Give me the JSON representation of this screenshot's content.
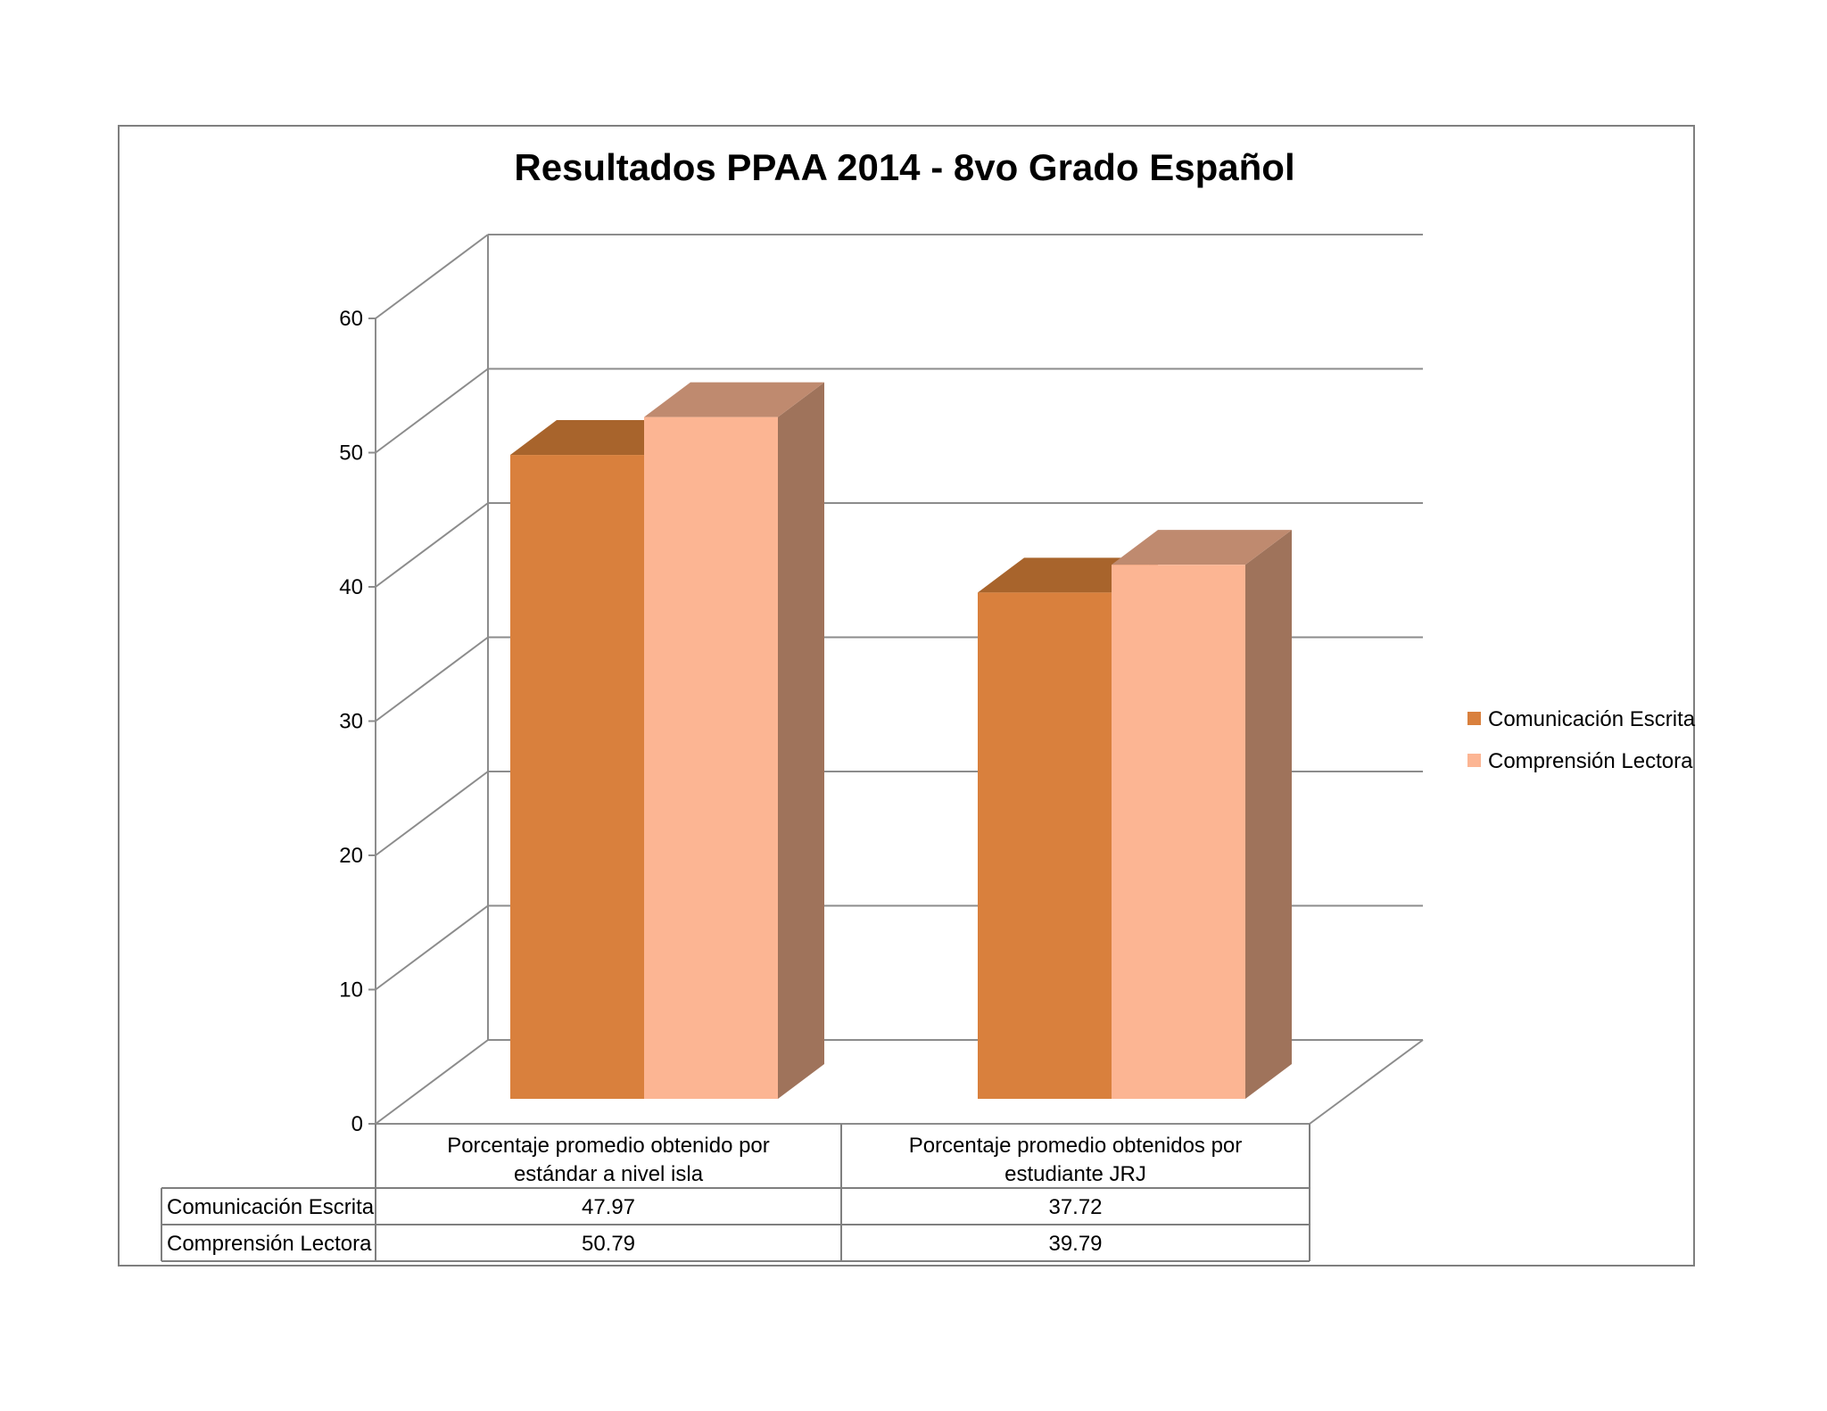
{
  "chart_data": {
    "type": "bar",
    "title": "Resultados PPAA 2014 - 8vo Grado Español",
    "categories": [
      [
        "Porcentaje promedio obtenido por",
        "estándar a nivel isla"
      ],
      [
        "Porcentaje promedio obtenidos por",
        "estudiante JRJ"
      ]
    ],
    "series": [
      {
        "name": "Comunicación Escrita",
        "values": [
          47.97,
          37.72
        ],
        "value_labels": [
          "47.97",
          "37.72"
        ],
        "color": "#D9803D"
      },
      {
        "name": "Comprensión Lectora",
        "values": [
          50.79,
          39.79
        ],
        "value_labels": [
          "50.79",
          "39.79"
        ],
        "color": "#FCB593"
      }
    ],
    "ylim": [
      0,
      60
    ],
    "yticks": [
      0,
      10,
      20,
      30,
      40,
      50,
      60
    ],
    "grid": true,
    "legend_position": "right",
    "data_table": true,
    "three_d": true
  }
}
